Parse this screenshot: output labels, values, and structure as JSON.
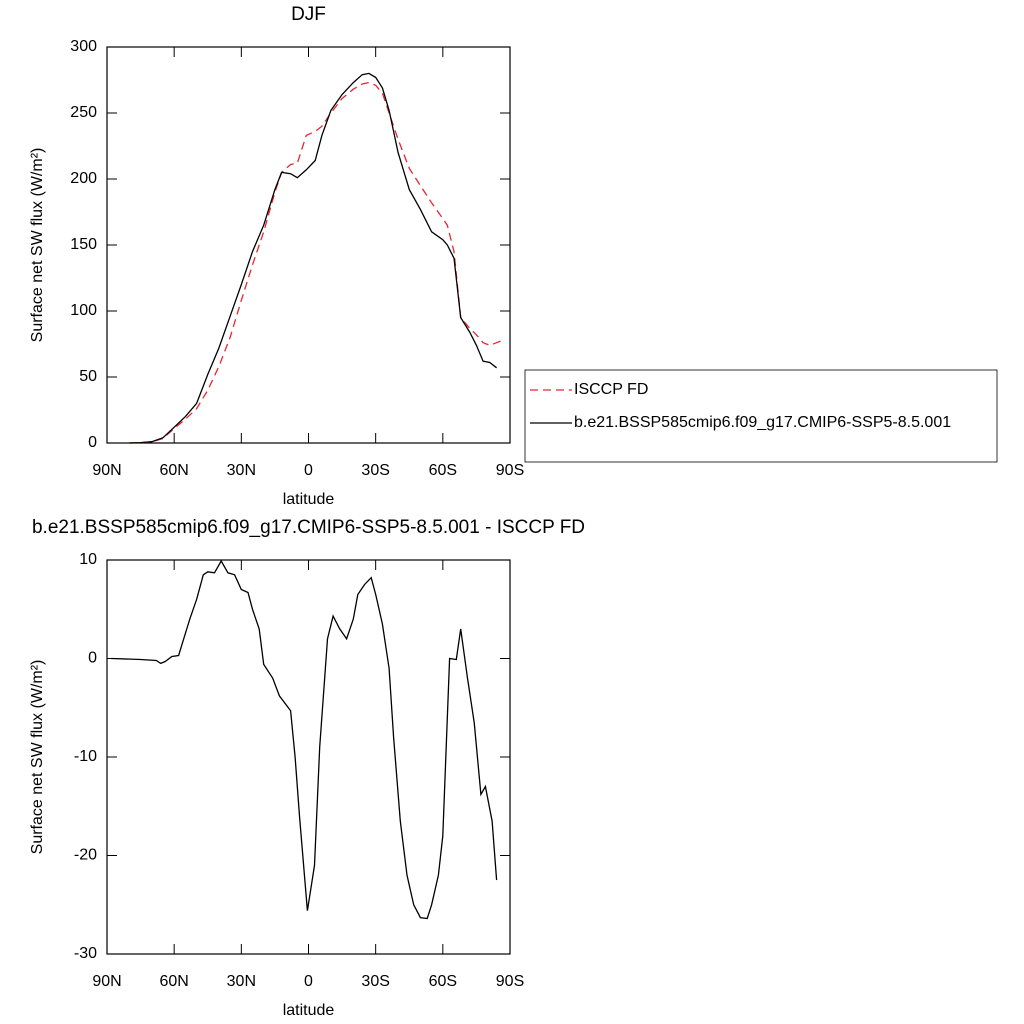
{
  "chart_data": [
    {
      "type": "line",
      "title": "DJF",
      "xlabel": "latitude",
      "ylabel": "Surface net SW flux (W/m²)",
      "x": [
        80,
        75,
        70,
        65,
        60,
        55,
        50,
        45,
        40,
        35,
        30,
        25,
        20,
        15,
        12,
        8,
        5,
        1,
        -3,
        -6,
        -10,
        -15,
        -20,
        -24,
        -27,
        -30,
        -33,
        -36,
        -40,
        -45,
        -50,
        -55,
        -60,
        -62,
        -65,
        -68,
        -72,
        -75,
        -78,
        -81,
        -84,
        -87
      ],
      "xlim": [
        90,
        -90
      ],
      "xticks": [
        {
          "value": 90,
          "label": "90N"
        },
        {
          "value": 60,
          "label": "60N"
        },
        {
          "value": 30,
          "label": "30N"
        },
        0,
        {
          "value": -30,
          "label": "30S"
        },
        {
          "value": -60,
          "label": "60S"
        },
        {
          "value": -90,
          "label": "90S"
        }
      ],
      "ylim": [
        0,
        300
      ],
      "yticks": [
        0,
        50,
        100,
        150,
        200,
        250,
        300
      ],
      "series": [
        {
          "name": "ISCCP FD",
          "color": "#e8262d",
          "dashed": true,
          "values": [
            0,
            0.2,
            0.8,
            3.5,
            11,
            18,
            26,
            40,
            58,
            80,
            108,
            135,
            160,
            190,
            205,
            211,
            212,
            233,
            236,
            240,
            250,
            261,
            268,
            272,
            273,
            271,
            265,
            250,
            230,
            208,
            195,
            182,
            170,
            165,
            145,
            95,
            87,
            82,
            76,
            74,
            76,
            78
          ]
        },
        {
          "name": "b.e21.BSSP585cmip6.f09_g17.CMIP6-SSP5-8.5.001",
          "color": "#000000",
          "dashed": false,
          "values": [
            0,
            0.3,
            1,
            4,
            12,
            20,
            30,
            52,
            72,
            96,
            120,
            145,
            165,
            192,
            205,
            204,
            201,
            207,
            214,
            233,
            252,
            264,
            273,
            279,
            280,
            277,
            269,
            252,
            220,
            192,
            177,
            160,
            154,
            150,
            140,
            95,
            84,
            74,
            62,
            61,
            57,
            null
          ]
        }
      ]
    },
    {
      "type": "line",
      "title": "b.e21.BSSP585cmip6.f09_g17.CMIP6-SSP5-8.5.001 - ISCCP FD",
      "xlabel": "latitude",
      "ylabel": "Surface net SW flux (W/m²)",
      "x": [
        88,
        75,
        68,
        66,
        64,
        61,
        58,
        56,
        53,
        50,
        47,
        45,
        42,
        39,
        36,
        33,
        30,
        27,
        25,
        22,
        20,
        16,
        13,
        8,
        6,
        4,
        0.5,
        -2.7,
        -5,
        -8.5,
        -11,
        -14,
        -17,
        -20,
        -22,
        -25,
        -28,
        -30,
        -33,
        -36,
        -38,
        -41,
        -44,
        -47,
        -50,
        -53,
        -55,
        -58,
        -60,
        -63,
        -66,
        -68,
        -71,
        -74,
        -77,
        -79,
        -82,
        -84
      ],
      "xlim": [
        90,
        -90
      ],
      "xticks": [
        {
          "value": 90,
          "label": "90N"
        },
        {
          "value": 60,
          "label": "60N"
        },
        {
          "value": 30,
          "label": "30N"
        },
        0,
        {
          "value": -30,
          "label": "30S"
        },
        {
          "value": -60,
          "label": "60S"
        },
        {
          "value": -90,
          "label": "90S"
        }
      ],
      "ylim": [
        -30,
        10
      ],
      "yticks": [
        -30,
        -20,
        -10,
        0,
        10
      ],
      "series": [
        {
          "color": "#000000",
          "dashed": false,
          "values": [
            0,
            -0.1,
            -0.2,
            -0.5,
            -0.3,
            0.2,
            0.3,
            1.8,
            4,
            6,
            8.5,
            8.8,
            8.7,
            9.9,
            8.7,
            8.5,
            7,
            6.7,
            5,
            3,
            -0.6,
            -2,
            -3.8,
            -5.3,
            -10,
            -16,
            -25.6,
            -21,
            -9,
            2,
            4.3,
            3,
            2,
            4,
            6.5,
            7.5,
            8.2,
            6.5,
            3.5,
            -1,
            -8,
            -16.5,
            -22,
            -25,
            -26.3,
            -26.4,
            -25,
            -22,
            -18,
            0,
            -0.1,
            3,
            -2,
            -6.5,
            -13.8,
            -13,
            -16.5,
            -22.5
          ]
        }
      ]
    }
  ]
}
